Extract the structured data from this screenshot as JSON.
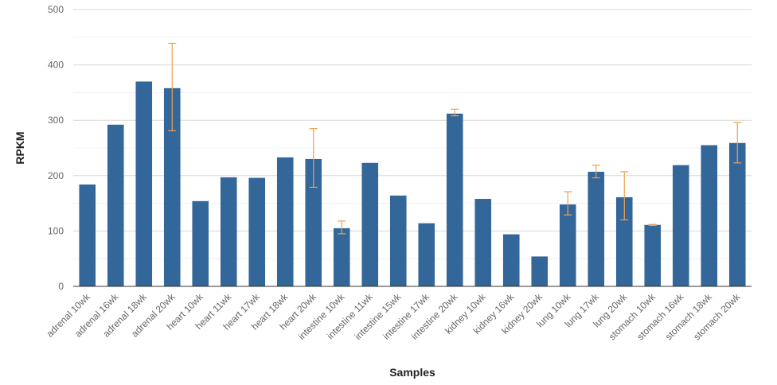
{
  "chart_data": {
    "type": "bar",
    "title": "",
    "xlabel": "Samples",
    "ylabel": "RPKM",
    "ylim": [
      0,
      500
    ],
    "yticks": [
      0,
      100,
      200,
      300,
      400,
      500
    ],
    "grid": true,
    "bar_color": "#336699",
    "error_color": "#f0a050",
    "categories": [
      "adrenal 10wk",
      "adrenal 16wk",
      "adrenal 18wk",
      "adrenal 20wk",
      "heart 10wk",
      "heart 11wk",
      "heart 17wk",
      "heart 18wk",
      "heart 20wk",
      "intestine 10wk",
      "intestine 11wk",
      "intestine 15wk",
      "intestine 17wk",
      "intestine 20wk",
      "kidney 10wk",
      "kidney 16wk",
      "kidney 20wk",
      "lung 10wk",
      "lung 17wk",
      "lung 20wk",
      "stomach 10wk",
      "stomach 16wk",
      "stomach 18wk",
      "stomach 20wk"
    ],
    "values": [
      184,
      292,
      370,
      358,
      154,
      197,
      196,
      233,
      230,
      105,
      223,
      164,
      114,
      312,
      158,
      94,
      54,
      148,
      207,
      161,
      111,
      219,
      255,
      259
    ],
    "error_bars": [
      null,
      null,
      null,
      [
        281,
        439
      ],
      null,
      null,
      null,
      null,
      [
        179,
        285
      ],
      [
        95,
        118
      ],
      null,
      null,
      null,
      [
        308,
        320
      ],
      null,
      null,
      null,
      [
        129,
        171
      ],
      [
        196,
        219
      ],
      [
        120,
        207
      ],
      [
        110,
        112
      ],
      null,
      null,
      [
        223,
        296
      ]
    ]
  }
}
